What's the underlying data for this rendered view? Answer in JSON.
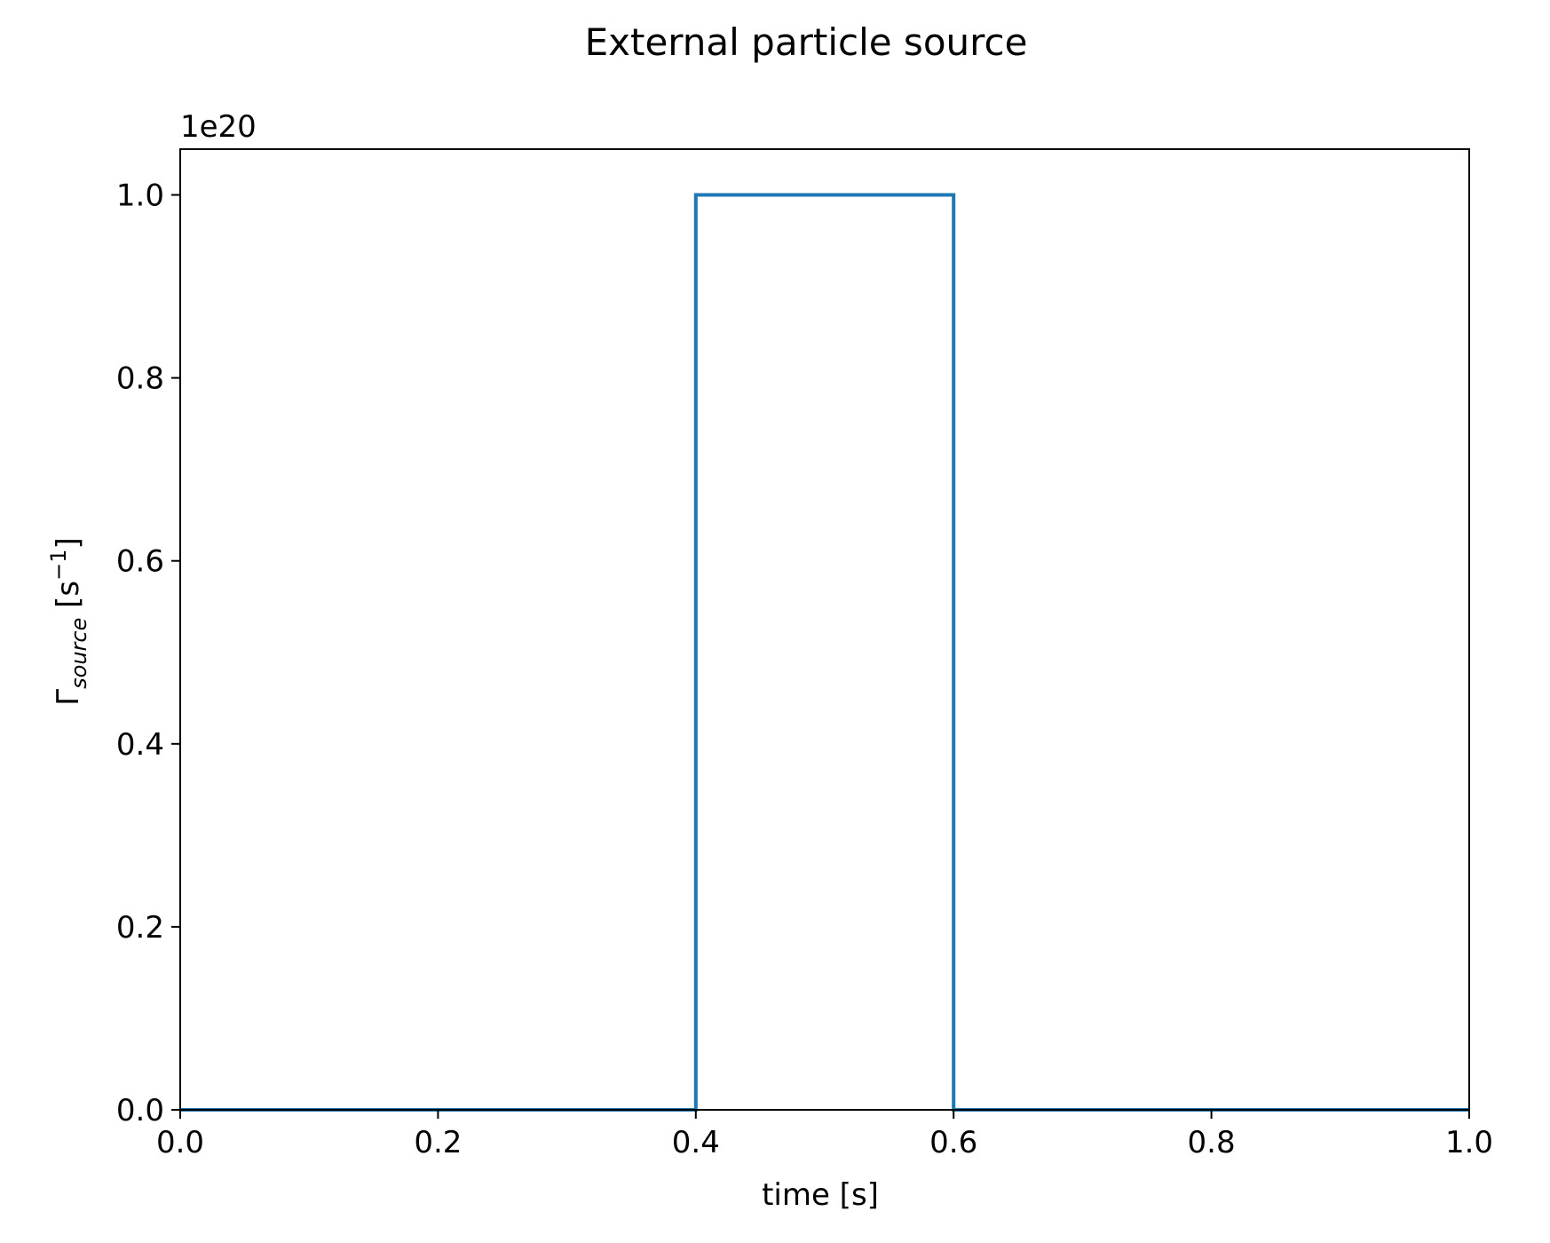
{
  "chart_data": {
    "type": "line",
    "title": "External particle source",
    "xlabel": "time [s]",
    "ylabel": {
      "base": "Γ",
      "subscript": "source",
      "unit_open": " [s",
      "unit_exponent": "−1",
      "unit_close": "]"
    },
    "y_offset_label": "1e20",
    "xlim": [
      0.0,
      1.0
    ],
    "ylim": [
      0.0,
      1.05
    ],
    "x_ticks": [
      0.0,
      0.2,
      0.4,
      0.6,
      0.8,
      1.0
    ],
    "x_tick_labels": [
      "0.0",
      "0.2",
      "0.4",
      "0.6",
      "0.8",
      "1.0"
    ],
    "y_ticks": [
      0.0,
      0.2,
      0.4,
      0.6,
      0.8,
      1.0
    ],
    "y_tick_labels": [
      "0.0",
      "0.2",
      "0.4",
      "0.6",
      "0.8",
      "1.0"
    ],
    "grid": false,
    "series": [
      {
        "color": "#1f77b4",
        "x": [
          0.0,
          0.4,
          0.4,
          0.6,
          0.6,
          1.0
        ],
        "y": [
          0.0,
          0.0,
          1.0,
          1.0,
          0.0,
          0.0
        ]
      }
    ]
  }
}
